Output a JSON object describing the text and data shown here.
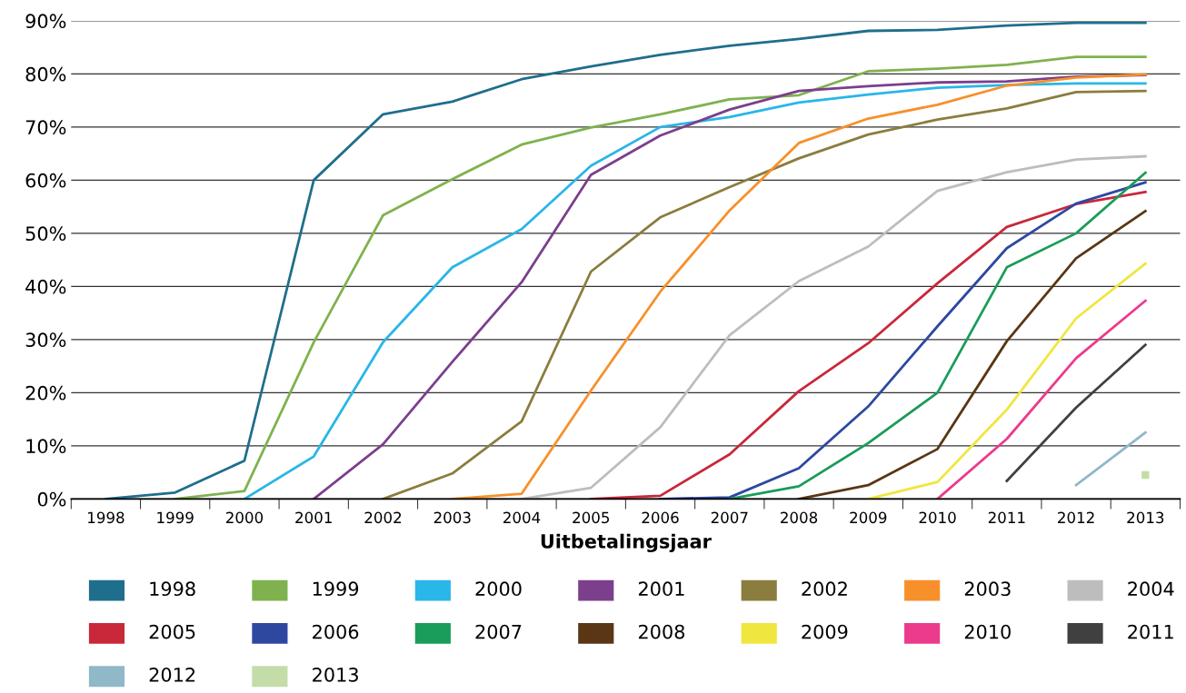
{
  "chart_data": {
    "type": "line",
    "xlabel": "Uitbetalingsjaar",
    "categories": [
      "1998",
      "1999",
      "2000",
      "2001",
      "2002",
      "2003",
      "2004",
      "2005",
      "2006",
      "2007",
      "2008",
      "2009",
      "2010",
      "2011",
      "2012",
      "2013"
    ],
    "ylim": [
      0,
      90
    ],
    "yticks": [
      {
        "value": 0,
        "label": "0%"
      },
      {
        "value": 10,
        "label": "10%"
      },
      {
        "value": 20,
        "label": "20%"
      },
      {
        "value": 30,
        "label": "30%"
      },
      {
        "value": 40,
        "label": "40%"
      },
      {
        "value": 50,
        "label": "50%"
      },
      {
        "value": 60,
        "label": "60%"
      },
      {
        "value": 70,
        "label": "70%"
      },
      {
        "value": 80,
        "label": "80%"
      },
      {
        "value": 90,
        "label": "90%"
      }
    ],
    "grid": "y",
    "legend": "bottom",
    "marker": "none",
    "line_style": "solid",
    "series": [
      {
        "name": "1998",
        "color": "#1f6e8c",
        "values": [
          0,
          1.2,
          7.2,
          60,
          72.4,
          74.8,
          79,
          81.4,
          83.6,
          85.3,
          86.6,
          88.1,
          88.3,
          89.1,
          89.6,
          89.6
        ]
      },
      {
        "name": "1999",
        "color": "#7fb24e",
        "values": [
          null,
          0,
          1.5,
          29.5,
          53.4,
          60.2,
          66.7,
          69.9,
          72.4,
          75.2,
          76.0,
          80.5,
          81.0,
          81.7,
          83.2,
          83.2
        ]
      },
      {
        "name": "2000",
        "color": "#29b6e8",
        "values": [
          null,
          null,
          0,
          8.0,
          29.5,
          43.6,
          50.8,
          62.7,
          70.0,
          71.9,
          74.6,
          76.1,
          77.4,
          77.9,
          78.2,
          78.2
        ]
      },
      {
        "name": "2001",
        "color": "#7b3f8c",
        "values": [
          null,
          null,
          null,
          0,
          10.3,
          25.8,
          40.8,
          61.0,
          68.4,
          73.3,
          76.8,
          77.7,
          78.4,
          78.6,
          79.5,
          79.8
        ]
      },
      {
        "name": "2002",
        "color": "#8a7d3e",
        "values": [
          null,
          null,
          null,
          null,
          0,
          4.8,
          14.6,
          42.8,
          53.0,
          58.7,
          64.1,
          68.6,
          71.4,
          73.5,
          76.6,
          76.8
        ]
      },
      {
        "name": "2003",
        "color": "#f7902a",
        "values": [
          null,
          null,
          null,
          null,
          null,
          0,
          1.0,
          20.4,
          39.0,
          54.3,
          67.0,
          71.6,
          74.2,
          77.8,
          79.3,
          79.9
        ]
      },
      {
        "name": "2004",
        "color": "#bdbdbd",
        "values": [
          null,
          null,
          null,
          null,
          null,
          null,
          0,
          2.1,
          13.5,
          30.8,
          41.0,
          47.5,
          58.0,
          61.5,
          63.9,
          64.5
        ]
      },
      {
        "name": "2005",
        "color": "#c8283a",
        "values": [
          null,
          null,
          null,
          null,
          null,
          null,
          null,
          0,
          0.6,
          8.4,
          20.3,
          29.3,
          40.6,
          51.2,
          55.5,
          57.8
        ]
      },
      {
        "name": "2006",
        "color": "#2e48a0",
        "values": [
          null,
          null,
          null,
          null,
          null,
          null,
          null,
          null,
          0,
          0.3,
          5.8,
          17.4,
          32.5,
          47.2,
          55.6,
          59.6
        ]
      },
      {
        "name": "2007",
        "color": "#1a9c5a",
        "values": [
          null,
          null,
          null,
          null,
          null,
          null,
          null,
          null,
          null,
          0,
          2.4,
          10.5,
          20.0,
          43.6,
          50.0,
          61.4
        ]
      },
      {
        "name": "2008",
        "color": "#5a3614",
        "values": [
          null,
          null,
          null,
          null,
          null,
          null,
          null,
          null,
          null,
          null,
          0,
          2.6,
          9.4,
          29.7,
          45.3,
          54.2
        ]
      },
      {
        "name": "2009",
        "color": "#f0e640",
        "values": [
          null,
          null,
          null,
          null,
          null,
          null,
          null,
          null,
          null,
          null,
          null,
          0,
          3.2,
          16.8,
          34.0,
          44.3
        ]
      },
      {
        "name": "2010",
        "color": "#ec3a8c",
        "values": [
          null,
          null,
          null,
          null,
          null,
          null,
          null,
          null,
          null,
          null,
          null,
          null,
          0,
          11.3,
          26.5,
          37.3
        ]
      },
      {
        "name": "2011",
        "color": "#404040",
        "values": [
          null,
          null,
          null,
          null,
          null,
          null,
          null,
          null,
          null,
          null,
          null,
          null,
          null,
          3.4,
          17.2,
          29.0
        ]
      },
      {
        "name": "2012",
        "color": "#8fb8c8",
        "values": [
          null,
          null,
          null,
          null,
          null,
          null,
          null,
          null,
          null,
          null,
          null,
          null,
          null,
          null,
          2.6,
          12.5
        ]
      },
      {
        "name": "2013",
        "color": "#c4dca8",
        "marker": "square",
        "values": [
          null,
          null,
          null,
          null,
          null,
          null,
          null,
          null,
          null,
          null,
          null,
          null,
          null,
          null,
          null,
          4.5
        ]
      }
    ]
  }
}
